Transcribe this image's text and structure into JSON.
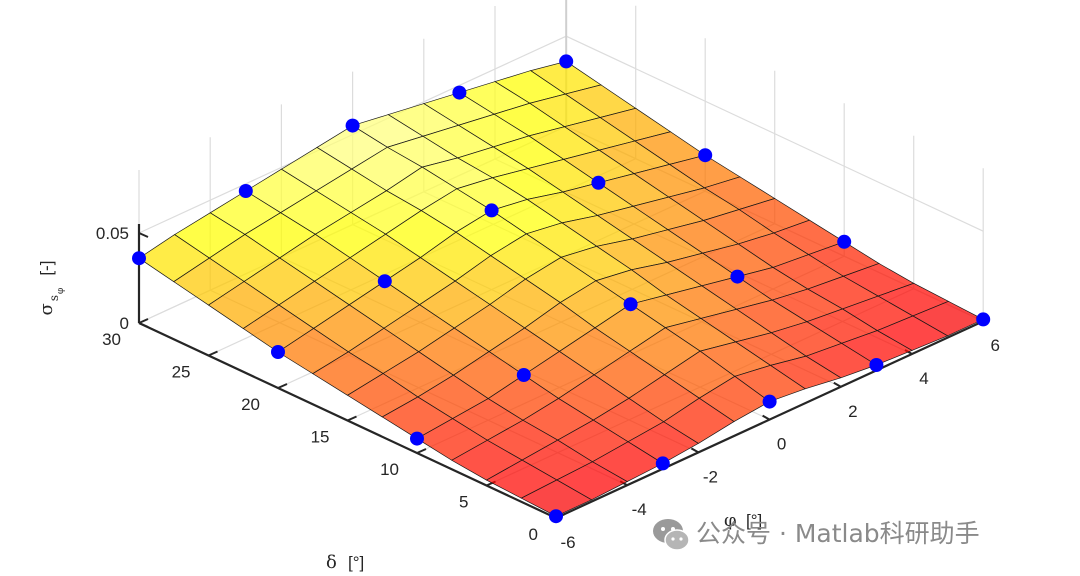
{
  "chart_data": {
    "type": "surface3d",
    "zlabel": {
      "symbol": "σ",
      "subscript": "s",
      "subsubscript": "φ",
      "unit": "[-]"
    },
    "xlabel": {
      "symbol": "δ",
      "unit": "[°]"
    },
    "ylabel": {
      "symbol": "φ",
      "unit": "[°]"
    },
    "x_ticks": [
      0,
      5,
      10,
      15,
      20,
      25,
      30
    ],
    "y_ticks": [
      -6,
      -4,
      -2,
      0,
      2,
      4,
      6
    ],
    "z_ticks": [
      0,
      0.05
    ],
    "z_tick_labels": [
      "0",
      "0.05"
    ],
    "xlim": [
      0,
      30
    ],
    "ylim": [
      -6,
      6
    ],
    "zlim": [
      0,
      0.05
    ],
    "grid": true,
    "colormap": "hot",
    "surface": {
      "delta": [
        0,
        2.5,
        5,
        7.5,
        10,
        12.5,
        15,
        17.5,
        20,
        22.5,
        25,
        27.5,
        30
      ],
      "phi": [
        -6,
        -5,
        -4,
        -3,
        -2,
        -1,
        0,
        1,
        2,
        3,
        4,
        5,
        6
      ],
      "sigma": [
        [
          0.001,
          0.001,
          0.002,
          0.003,
          0.005,
          0.008,
          0.01,
          0.008,
          0.005,
          0.003,
          0.002,
          0.001,
          0.001
        ],
        [
          0.002,
          0.003,
          0.004,
          0.006,
          0.008,
          0.012,
          0.015,
          0.012,
          0.008,
          0.006,
          0.004,
          0.003,
          0.002
        ],
        [
          0.003,
          0.005,
          0.007,
          0.009,
          0.012,
          0.016,
          0.02,
          0.016,
          0.012,
          0.009,
          0.007,
          0.005,
          0.003
        ],
        [
          0.005,
          0.007,
          0.009,
          0.012,
          0.016,
          0.02,
          0.024,
          0.02,
          0.016,
          0.012,
          0.009,
          0.007,
          0.005
        ],
        [
          0.008,
          0.01,
          0.012,
          0.016,
          0.02,
          0.024,
          0.028,
          0.024,
          0.02,
          0.016,
          0.012,
          0.01,
          0.008
        ],
        [
          0.011,
          0.013,
          0.016,
          0.02,
          0.024,
          0.029,
          0.032,
          0.029,
          0.024,
          0.02,
          0.016,
          0.013,
          0.011
        ],
        [
          0.014,
          0.017,
          0.02,
          0.024,
          0.028,
          0.033,
          0.036,
          0.033,
          0.028,
          0.024,
          0.02,
          0.017,
          0.014
        ],
        [
          0.017,
          0.02,
          0.024,
          0.028,
          0.032,
          0.037,
          0.04,
          0.037,
          0.032,
          0.028,
          0.024,
          0.02,
          0.017
        ],
        [
          0.02,
          0.024,
          0.028,
          0.032,
          0.036,
          0.041,
          0.044,
          0.041,
          0.036,
          0.032,
          0.028,
          0.024,
          0.02
        ],
        [
          0.024,
          0.028,
          0.032,
          0.036,
          0.04,
          0.044,
          0.047,
          0.044,
          0.04,
          0.036,
          0.032,
          0.028,
          0.024
        ],
        [
          0.028,
          0.032,
          0.036,
          0.04,
          0.043,
          0.046,
          0.05,
          0.046,
          0.043,
          0.04,
          0.036,
          0.032,
          0.028
        ],
        [
          0.032,
          0.036,
          0.04,
          0.043,
          0.046,
          0.049,
          0.052,
          0.049,
          0.046,
          0.043,
          0.04,
          0.036,
          0.032
        ],
        [
          0.036,
          0.04,
          0.043,
          0.046,
          0.049,
          0.052,
          0.055,
          0.052,
          0.049,
          0.046,
          0.043,
          0.04,
          0.036
        ]
      ]
    },
    "points": [
      {
        "delta": 0,
        "phi": -6,
        "sigma": 0.001
      },
      {
        "delta": 0,
        "phi": -3,
        "sigma": 0.003
      },
      {
        "delta": 0,
        "phi": 0,
        "sigma": 0.01
      },
      {
        "delta": 0,
        "phi": 3,
        "sigma": 0.003
      },
      {
        "delta": 0,
        "phi": 6,
        "sigma": 0.001
      },
      {
        "delta": 10,
        "phi": -6,
        "sigma": 0.008
      },
      {
        "delta": 10,
        "phi": -3,
        "sigma": 0.016
      },
      {
        "delta": 10,
        "phi": 0,
        "sigma": 0.028
      },
      {
        "delta": 10,
        "phi": 3,
        "sigma": 0.016
      },
      {
        "delta": 10,
        "phi": 6,
        "sigma": 0.008
      },
      {
        "delta": 20,
        "phi": -6,
        "sigma": 0.02
      },
      {
        "delta": 20,
        "phi": -3,
        "sigma": 0.032
      },
      {
        "delta": 20,
        "phi": 0,
        "sigma": 0.044
      },
      {
        "delta": 20,
        "phi": 3,
        "sigma": 0.032
      },
      {
        "delta": 20,
        "phi": 6,
        "sigma": 0.02
      },
      {
        "delta": 30,
        "phi": -6,
        "sigma": 0.036
      },
      {
        "delta": 30,
        "phi": -3,
        "sigma": 0.046
      },
      {
        "delta": 30,
        "phi": 0,
        "sigma": 0.055
      },
      {
        "delta": 30,
        "phi": 3,
        "sigma": 0.046
      },
      {
        "delta": 30,
        "phi": 6,
        "sigma": 0.036
      }
    ],
    "marker_color": "#0000ff"
  },
  "watermark": {
    "text": "公众号 · Matlab科研助手",
    "icon": "wechat-icon"
  }
}
